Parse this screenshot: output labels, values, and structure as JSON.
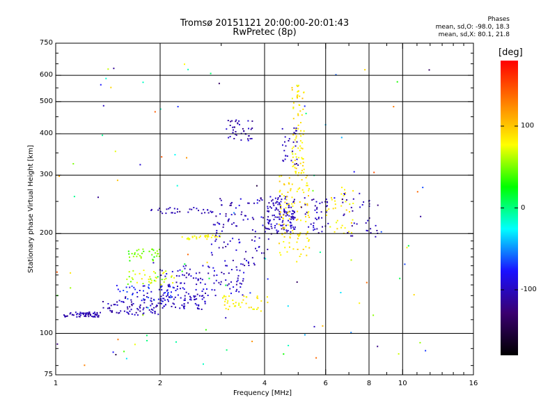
{
  "chart_data": {
    "type": "scatter",
    "title_line1": "Tromsø 20151121 20:00:00-20:01:43",
    "title_line2": "RwPretec (8p)",
    "xlabel": "Frequency [MHz]",
    "ylabel": "Stationary phase Virtual Height [km]",
    "x_scale": "log",
    "y_scale": "log",
    "xlim": [
      1,
      16
    ],
    "ylim": [
      75,
      750
    ],
    "x_ticks": [
      {
        "v": 1,
        "label": "1"
      },
      {
        "v": 2,
        "label": "2"
      },
      {
        "v": 4,
        "label": "4"
      },
      {
        "v": 6,
        "label": "6"
      },
      {
        "v": 8,
        "label": "8"
      },
      {
        "v": 10,
        "label": "10"
      },
      {
        "v": 16,
        "label": "16"
      }
    ],
    "y_ticks": [
      {
        "v": 75,
        "label": "75"
      },
      {
        "v": 100,
        "label": "100"
      },
      {
        "v": 200,
        "label": "200"
      },
      {
        "v": 300,
        "label": "300"
      },
      {
        "v": 400,
        "label": "400"
      },
      {
        "v": 500,
        "label": "500"
      },
      {
        "v": 600,
        "label": "600"
      },
      {
        "v": 750,
        "label": "750"
      }
    ],
    "grid_x": [
      2,
      4,
      6,
      8,
      10
    ],
    "grid_y": [
      100,
      200,
      300,
      400,
      500,
      600
    ],
    "colorbar": {
      "label": "[deg]",
      "range": [
        -180,
        180
      ],
      "ticks": [
        {
          "v": 100,
          "label": "100"
        },
        {
          "v": 0,
          "label": "0"
        },
        {
          "v": -100,
          "label": "-100"
        }
      ],
      "colors": [
        "#000000",
        "#3a0070",
        "#1a10ff",
        "#00ffff",
        "#00ff00",
        "#ffff00",
        "#ff8000",
        "#ff0000"
      ]
    },
    "phase_box": {
      "title": "Phases",
      "line1": "mean, sd,O: -98.0, 18.3",
      "line2": "mean, sd,X:  80.1, 21.8"
    },
    "clusters": [
      {
        "x": [
          1.05,
          1.35
        ],
        "y": [
          112,
          116
        ],
        "n": 60,
        "phase": [
          -115,
          -95
        ]
      },
      {
        "x": [
          1.35,
          2.0
        ],
        "y": [
          113,
          125
        ],
        "n": 70,
        "phase": [
          -120,
          -90
        ]
      },
      {
        "x": [
          1.5,
          2.2
        ],
        "y": [
          125,
          140
        ],
        "n": 60,
        "phase": [
          -110,
          -60
        ]
      },
      {
        "x": [
          1.6,
          2.2
        ],
        "y": [
          140,
          155
        ],
        "n": 40,
        "phase": [
          40,
          90
        ]
      },
      {
        "x": [
          1.6,
          2.0
        ],
        "y": [
          165,
          180
        ],
        "n": 35,
        "phase": [
          30,
          60
        ]
      },
      {
        "x": [
          2.0,
          2.7
        ],
        "y": [
          118,
          130
        ],
        "n": 60,
        "phase": [
          -110,
          -90
        ]
      },
      {
        "x": [
          2.0,
          3.5
        ],
        "y": [
          130,
          160
        ],
        "n": 110,
        "phase": [
          -115,
          -80
        ]
      },
      {
        "x": [
          2.3,
          3.0
        ],
        "y": [
          192,
          200
        ],
        "n": 30,
        "phase": [
          70,
          95
        ]
      },
      {
        "x": [
          1.85,
          2.9
        ],
        "y": [
          230,
          240
        ],
        "n": 30,
        "phase": [
          -110,
          -95
        ]
      },
      {
        "x": [
          3.0,
          4.1
        ],
        "y": [
          118,
          130
        ],
        "n": 40,
        "phase": [
          70,
          95
        ]
      },
      {
        "x": [
          2.8,
          4.2
        ],
        "y": [
          160,
          260
        ],
        "n": 110,
        "phase": [
          -120,
          -80
        ]
      },
      {
        "x": [
          3.1,
          3.7
        ],
        "y": [
          380,
          440
        ],
        "n": 40,
        "phase": [
          -120,
          -90
        ]
      },
      {
        "x": [
          4.0,
          4.9
        ],
        "y": [
          200,
          260
        ],
        "n": 130,
        "phase": [
          -115,
          -90
        ]
      },
      {
        "x": [
          4.4,
          5.4
        ],
        "y": [
          170,
          300
        ],
        "n": 110,
        "phase": [
          75,
          100
        ]
      },
      {
        "x": [
          4.8,
          5.2
        ],
        "y": [
          300,
          560
        ],
        "n": 80,
        "phase": [
          70,
          100
        ]
      },
      {
        "x": [
          5.2,
          6.1
        ],
        "y": [
          200,
          260
        ],
        "n": 40,
        "phase": [
          -115,
          -90
        ]
      },
      {
        "x": [
          6.0,
          7.2
        ],
        "y": [
          200,
          280
        ],
        "n": 35,
        "phase": [
          70,
          100
        ]
      },
      {
        "x": [
          6.7,
          8.5
        ],
        "y": [
          195,
          265
        ],
        "n": 35,
        "phase": [
          -120,
          -90
        ]
      },
      {
        "x": [
          4.5,
          5.0
        ],
        "y": [
          320,
          420
        ],
        "n": 30,
        "phase": [
          -110,
          -90
        ]
      },
      {
        "x": [
          1.0,
          12.0
        ],
        "y": [
          80,
          650
        ],
        "n": 110,
        "phase": [
          -150,
          150
        ]
      }
    ]
  }
}
